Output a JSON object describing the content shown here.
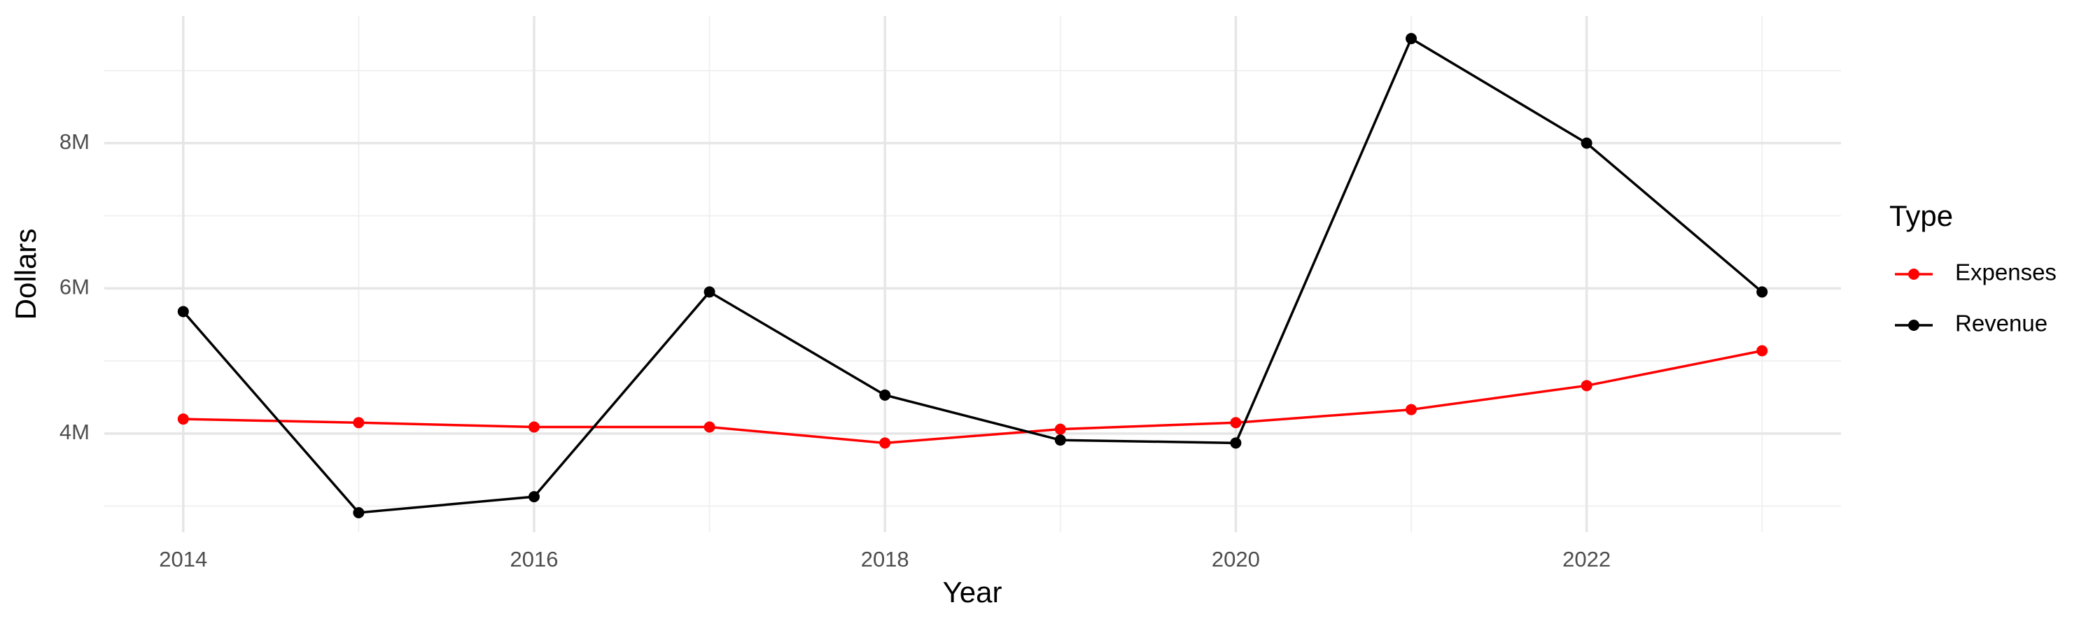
{
  "chart_data": {
    "type": "line",
    "x_label": "Year",
    "y_label": "Dollars",
    "x": [
      2014,
      2015,
      2016,
      2017,
      2018,
      2019,
      2020,
      2021,
      2022,
      2023
    ],
    "series": [
      {
        "name": "Expenses",
        "color": "#ff0000",
        "values": [
          4200000,
          4150000,
          4090000,
          4090000,
          3870000,
          4060000,
          4150000,
          4330000,
          4660000,
          5140000
        ]
      },
      {
        "name": "Revenue",
        "color": "#000000",
        "values": [
          5680000,
          2910000,
          3130000,
          5950000,
          4530000,
          3910000,
          3870000,
          9440000,
          8000000,
          5950000
        ]
      }
    ],
    "xlim": [
      2013.55,
      2023.45
    ],
    "xticks": [
      2014,
      2016,
      2018,
      2020,
      2022
    ],
    "x_minor_ticks": [
      2015,
      2017,
      2019,
      2021,
      2023
    ],
    "ylim": [
      2640000,
      9750000
    ],
    "yticks": [
      {
        "value": 4000000,
        "label": "4M"
      },
      {
        "value": 6000000,
        "label": "6M"
      },
      {
        "value": 8000000,
        "label": "8M"
      }
    ],
    "y_minor_ticks": [
      3000000,
      5000000,
      7000000,
      9000000
    ],
    "grid": true,
    "legend_title": "Type",
    "legend_position": "right"
  }
}
